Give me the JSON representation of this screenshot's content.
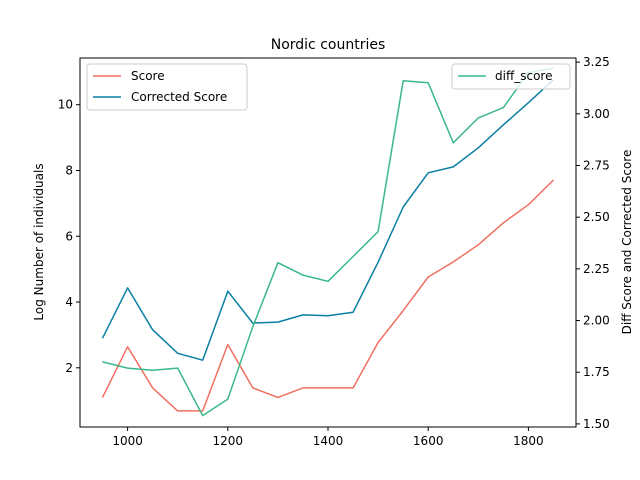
{
  "chart_data": {
    "type": "line",
    "title": "Nordic countries",
    "xlabel": "",
    "ylabel": "Log Number of individuals",
    "y2label": "Diff Score and Corrected Score",
    "xlim": [
      905,
      1895
    ],
    "ylim": [
      0.2,
      11.42
    ],
    "y2lim": [
      1.485,
      3.27
    ],
    "x_ticks": [
      1000,
      1200,
      1400,
      1600,
      1800
    ],
    "y_ticks": [
      2,
      4,
      6,
      8,
      10
    ],
    "y2_ticks": [
      1.5,
      1.75,
      2.0,
      2.25,
      2.5,
      2.75,
      3.0,
      3.25
    ],
    "y2_tick_labels": [
      "1.50",
      "1.75",
      "2.00",
      "2.25",
      "2.50",
      "2.75",
      "3.00",
      "3.25"
    ],
    "x": [
      950,
      1000,
      1050,
      1100,
      1150,
      1200,
      1250,
      1300,
      1350,
      1400,
      1450,
      1500,
      1550,
      1600,
      1650,
      1700,
      1750,
      1800,
      1850
    ],
    "series": [
      {
        "name": "Score",
        "axis": "left",
        "color": "#f07060",
        "values": [
          1.1,
          2.64,
          1.39,
          0.69,
          0.69,
          2.71,
          1.39,
          1.1,
          1.39,
          1.39,
          1.39,
          2.77,
          3.74,
          4.76,
          5.22,
          5.74,
          6.41,
          6.96,
          7.71
        ]
      },
      {
        "name": "Corrected Score",
        "axis": "left",
        "color": "#0a7fa3",
        "values": [
          2.9,
          4.43,
          3.16,
          2.44,
          2.23,
          4.33,
          3.36,
          3.39,
          3.61,
          3.58,
          3.69,
          5.21,
          6.89,
          7.93,
          8.11,
          8.69,
          9.39,
          10.06,
          10.76
        ]
      },
      {
        "name": "diff_score",
        "axis": "right",
        "color": "#3ab88a",
        "values": [
          1.8,
          1.77,
          1.76,
          1.77,
          1.54,
          1.62,
          1.97,
          2.28,
          2.22,
          2.19,
          2.31,
          2.43,
          3.16,
          3.15,
          2.86,
          2.98,
          3.03,
          3.2,
          3.22
        ]
      }
    ],
    "legend_left": {
      "placement": "top-left",
      "entries": [
        "Score",
        "Corrected Score"
      ]
    },
    "legend_right": {
      "placement": "top-right",
      "entries": [
        "diff_score"
      ]
    },
    "grid": false
  }
}
